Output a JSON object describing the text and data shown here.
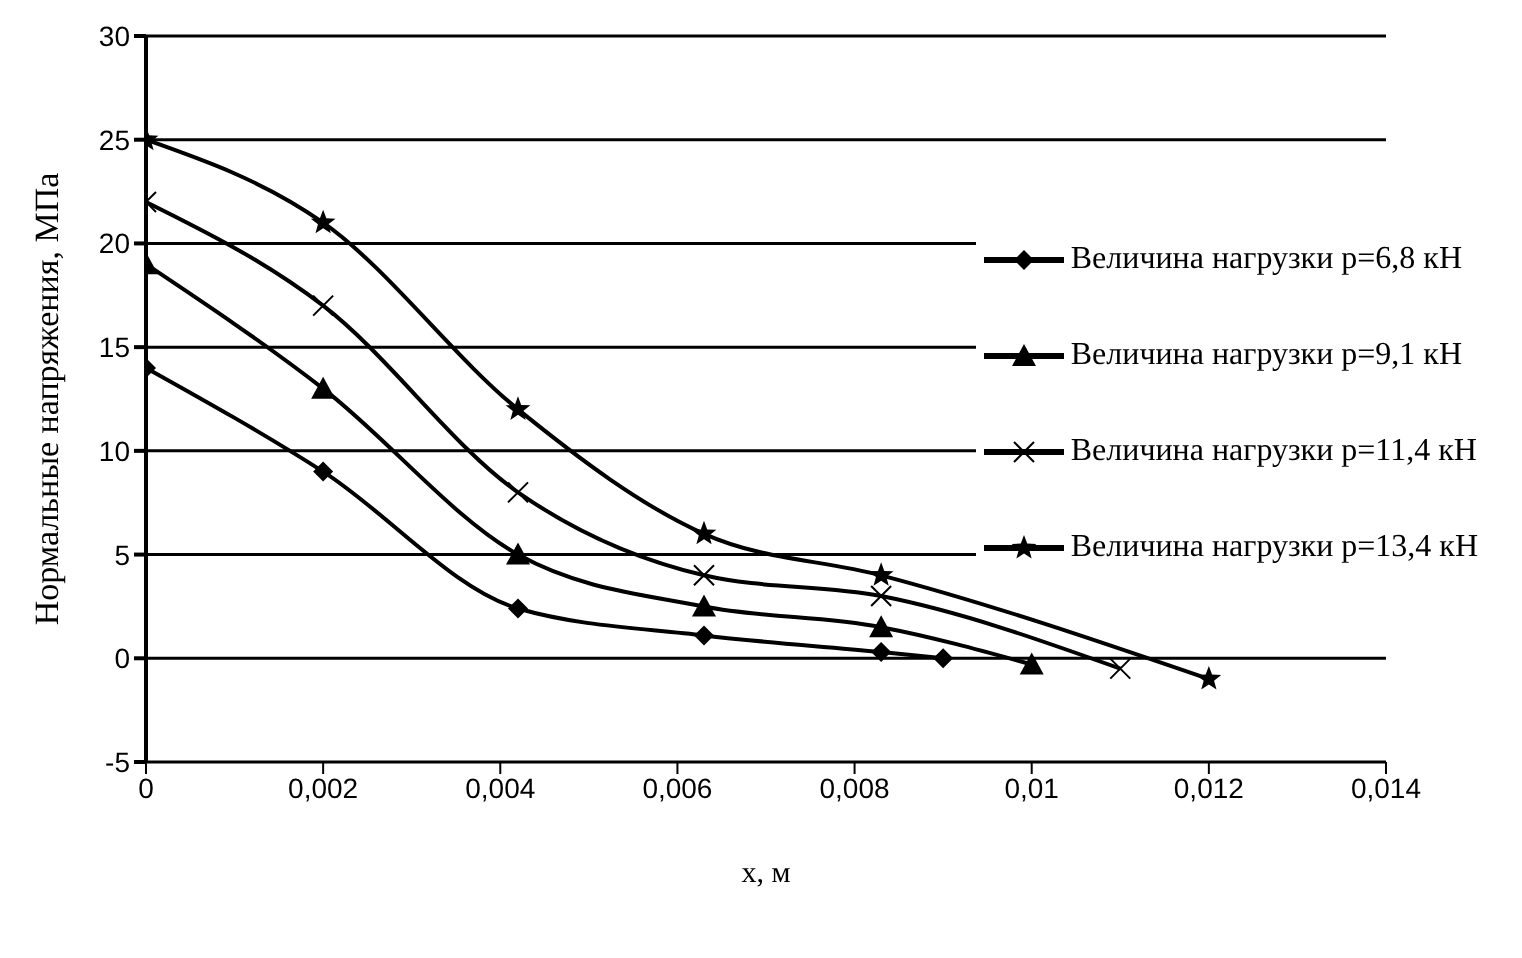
{
  "chart_data": {
    "type": "line",
    "xlabel": "x, м",
    "ylabel": "Нормальные напряжения, МПа",
    "xlim": [
      0,
      0.014
    ],
    "xticks": [
      {
        "value": 0,
        "label": "0"
      },
      {
        "value": 0.002,
        "label": "0,002"
      },
      {
        "value": 0.004,
        "label": "0,004"
      },
      {
        "value": 0.006,
        "label": "0,006"
      },
      {
        "value": 0.008,
        "label": "0,008"
      },
      {
        "value": 0.01,
        "label": "0,01"
      },
      {
        "value": 0.012,
        "label": "0,012"
      },
      {
        "value": 0.014,
        "label": "0,014"
      }
    ],
    "ylim": [
      -5,
      30
    ],
    "yticks": [
      -5,
      0,
      5,
      10,
      15,
      20,
      25,
      30
    ],
    "grid": "y",
    "legend": "right",
    "series": [
      {
        "name": "Величина нагрузки p=6,8 кН",
        "color": "#000000",
        "marker": "diamond",
        "x": [
          0,
          0.002,
          0.0042,
          0.0063,
          0.0083,
          0.009
        ],
        "values": [
          14,
          9,
          2.4,
          1.1,
          0.3,
          0
        ]
      },
      {
        "name": "Величина нагрузки p=9,1 кН",
        "color": "#000000",
        "marker": "triangle",
        "x": [
          0,
          0.002,
          0.0042,
          0.0063,
          0.0083,
          0.01
        ],
        "values": [
          19,
          13,
          5,
          2.5,
          1.5,
          -0.3
        ]
      },
      {
        "name": "Величина нагрузки p=11,4 кН",
        "color": "#000000",
        "marker": "cross",
        "x": [
          0,
          0.002,
          0.0042,
          0.0063,
          0.0083,
          0.011
        ],
        "values": [
          22,
          17,
          8,
          4,
          3,
          -0.5
        ]
      },
      {
        "name": "Величина нагрузки p=13,4 кН",
        "color": "#000000",
        "marker": "star",
        "x": [
          0,
          0.002,
          0.0042,
          0.0063,
          0.0083,
          0.012
        ],
        "values": [
          25,
          21,
          12,
          6,
          4,
          -1
        ]
      }
    ]
  }
}
